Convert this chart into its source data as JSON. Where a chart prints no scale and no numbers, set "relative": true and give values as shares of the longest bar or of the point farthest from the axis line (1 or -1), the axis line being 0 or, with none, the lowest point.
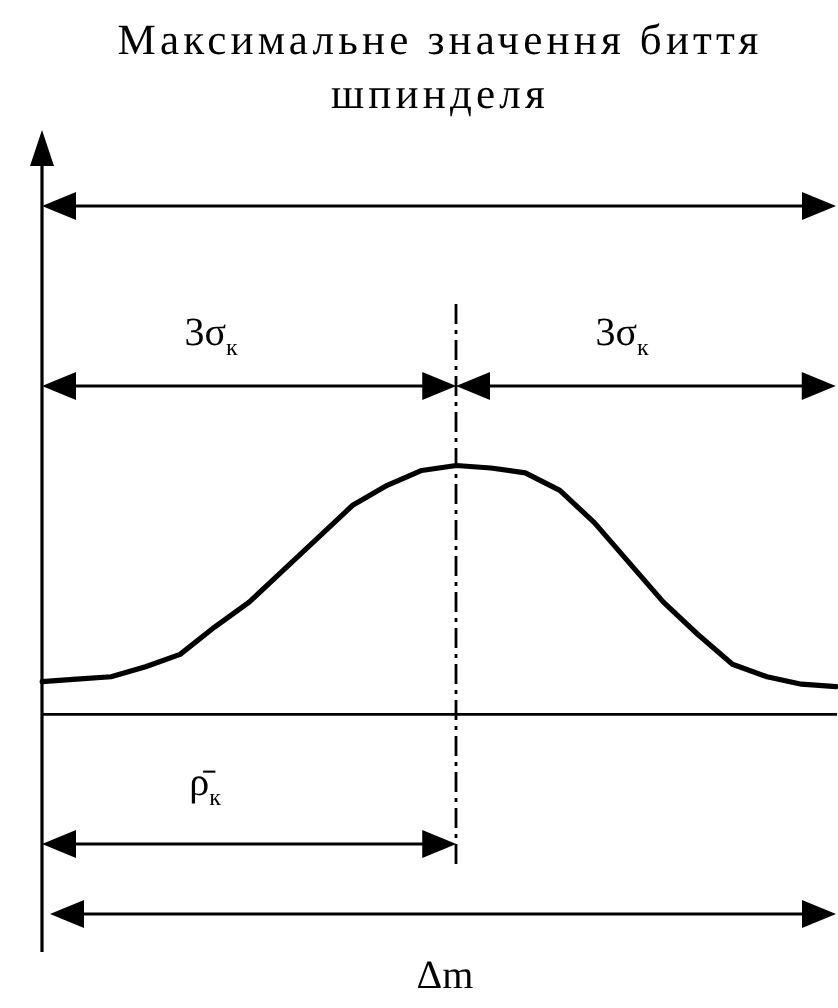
{
  "chart_data": {
    "type": "line",
    "title": "Максимальне значення биття шпинделя",
    "categories": [
      null,
      null,
      null,
      null,
      null,
      null,
      null,
      null,
      null,
      null,
      null,
      null,
      null,
      null,
      null,
      null,
      null,
      null,
      null,
      null,
      null,
      null,
      null,
      null
    ],
    "values": [
      0.13,
      0.14,
      0.15,
      0.19,
      0.24,
      0.35,
      0.45,
      0.58,
      0.71,
      0.84,
      0.92,
      0.98,
      1,
      0.99,
      0.97,
      0.9,
      0.77,
      0.61,
      0.45,
      0.32,
      0.2,
      0.15,
      0.12,
      0.11
    ],
    "color": "#000000",
    "relative": true,
    "tick_labels": false,
    "annotations": [
      "3σ$_{к}$",
      "3σ$_{к}$",
      "ρ̄$_{к}$",
      "Δm"
    ]
  }
}
